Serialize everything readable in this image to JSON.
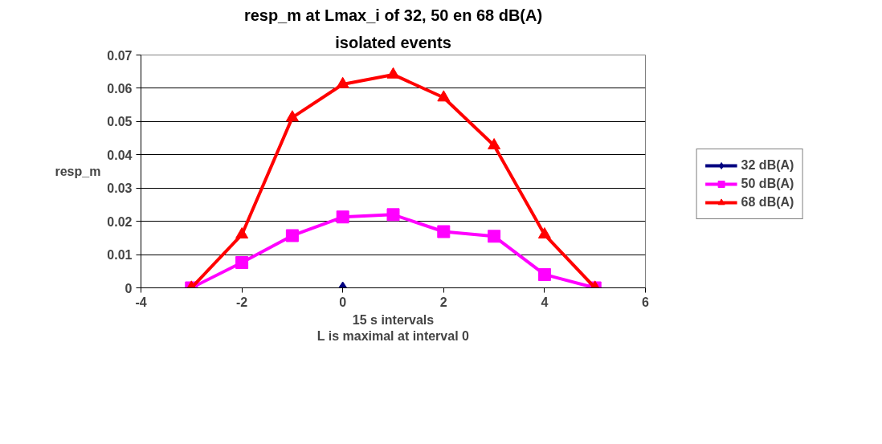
{
  "chart_data": {
    "type": "line",
    "title": "resp_m at Lmax_i of 32, 50 en 68 dB(A)",
    "subtitle": "isolated events",
    "xlabel": "15 s intervals\nL is maximal at interval 0",
    "ylabel": "resp_m",
    "xlim": [
      -4,
      6
    ],
    "xticks": [
      -4,
      -2,
      0,
      2,
      4,
      6
    ],
    "ylim": [
      0,
      0.07
    ],
    "yticks": [
      0,
      0.01,
      0.02,
      0.03,
      0.04,
      0.05,
      0.06,
      0.07
    ],
    "grid": "y",
    "legend": "right",
    "series": [
      {
        "name": "32 dB(A)",
        "color": "#000080",
        "marker": "diamond",
        "x": [
          0
        ],
        "values": [
          0
        ]
      },
      {
        "name": "50 dB(A)",
        "color": "#ff00ff",
        "marker": "square",
        "x": [
          -3,
          -2,
          -1,
          0,
          1,
          2,
          3,
          4,
          5
        ],
        "values": [
          0,
          0.0076,
          0.0157,
          0.0213,
          0.022,
          0.0169,
          0.0155,
          0.004,
          0
        ]
      },
      {
        "name": "68 dB(A)",
        "color": "#ff0000",
        "marker": "triangle",
        "x": [
          -3,
          -2,
          -1,
          0,
          1,
          2,
          3,
          4,
          5
        ],
        "values": [
          0,
          0.016,
          0.0512,
          0.0612,
          0.0641,
          0.0572,
          0.0428,
          0.016,
          0
        ]
      }
    ]
  }
}
